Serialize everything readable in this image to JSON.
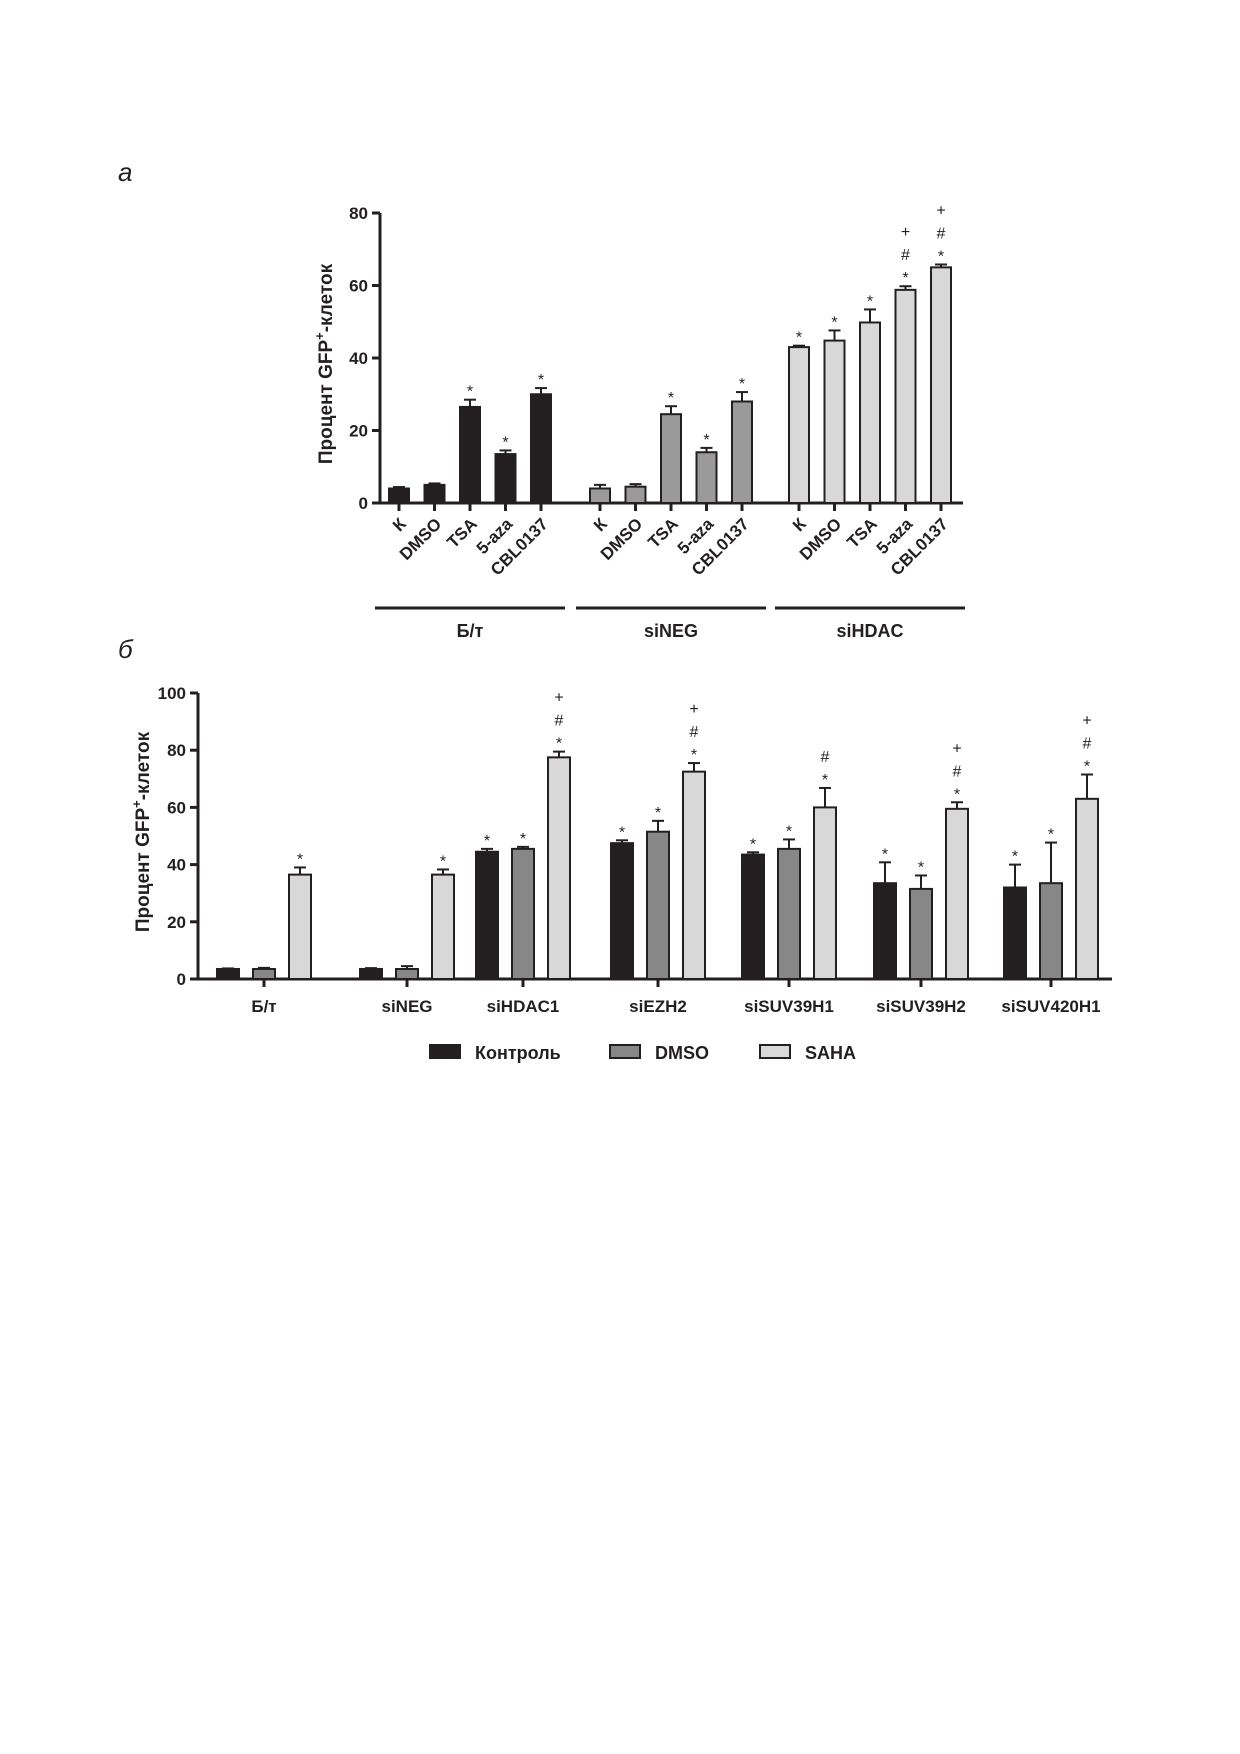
{
  "chart_data": [
    {
      "panel_label": "а",
      "type": "bar",
      "ylabel_main": "Процент GFP",
      "ylabel_sup": "+",
      "ylabel_tail": "-клеток",
      "ylim": [
        0,
        80
      ],
      "yticks": [
        "0",
        "20",
        "40",
        "60",
        "80"
      ],
      "groups": [
        {
          "label": "Б/т",
          "color": "#231f20",
          "categories": [
            "К",
            "DMSO",
            "TSA",
            "5-aza",
            "CBL0137"
          ],
          "values": [
            4,
            5,
            26.5,
            13.5,
            30
          ],
          "errors": [
            0.4,
            0.4,
            2,
            1,
            1.7
          ],
          "marks": [
            "",
            "",
            "*",
            "*",
            "*"
          ]
        },
        {
          "label": "siNEG",
          "color": "#9a9a9a",
          "categories": [
            "К",
            "DMSO",
            "TSA",
            "5-aza",
            "CBL0137"
          ],
          "values": [
            4,
            4.5,
            24.5,
            14,
            28
          ],
          "errors": [
            1,
            0.7,
            2.2,
            1.2,
            2.6
          ],
          "marks": [
            "",
            "",
            "*",
            "*",
            "*"
          ]
        },
        {
          "label": "siHDAC",
          "color": "#d8d8d8",
          "categories": [
            "К",
            "DMSO",
            "TSA",
            "5-aza",
            "CBL0137"
          ],
          "values": [
            43,
            44.8,
            49.8,
            58.8,
            65
          ],
          "errors": [
            0.4,
            2.8,
            3.6,
            1,
            0.8
          ],
          "marks": [
            "*",
            "*",
            "*",
            "*\n#\n+",
            "*\n#\n+"
          ]
        }
      ]
    },
    {
      "panel_label": "б",
      "type": "bar",
      "ylabel_main": "Процент GFP",
      "ylabel_sup": "+",
      "ylabel_tail": "-клеток",
      "ylim": [
        0,
        100
      ],
      "yticks": [
        "0",
        "20",
        "40",
        "60",
        "80",
        "100"
      ],
      "categories": [
        "Б/т",
        "siNEG",
        "siHDAC1",
        "siEZH2",
        "siSUV39H1",
        "siSUV39H2",
        "siSUV420H1"
      ],
      "series": [
        {
          "name": "Контроль",
          "color": "#231f20",
          "values": [
            3.5,
            3.5,
            44.5,
            47.5,
            43.5,
            33.5,
            32
          ],
          "errors": [
            0.2,
            0.3,
            1,
            1,
            0.8,
            7.3,
            8
          ],
          "marks": [
            "",
            "",
            "*",
            "*",
            "*",
            "*",
            "*"
          ]
        },
        {
          "name": "DMSO",
          "color": "#878787",
          "values": [
            3.5,
            3.5,
            45.5,
            51.5,
            45.5,
            31.5,
            33.5
          ],
          "errors": [
            0.4,
            1,
            0.7,
            3.8,
            3.3,
            4.7,
            14.2
          ],
          "marks": [
            "",
            "",
            "*",
            "*",
            "*",
            "*",
            "*"
          ]
        },
        {
          "name": "SAHA",
          "color": "#d8d8d8",
          "values": [
            36.5,
            36.5,
            77.5,
            72.5,
            60,
            59.5,
            63
          ],
          "errors": [
            2.5,
            1.8,
            2,
            3,
            6.8,
            2.3,
            8.5
          ],
          "marks": [
            "*",
            "*",
            "*\n#\n+",
            "*\n#\n+",
            "*\n#",
            "*\n#\n+",
            "*\n#\n+"
          ]
        }
      ]
    }
  ]
}
